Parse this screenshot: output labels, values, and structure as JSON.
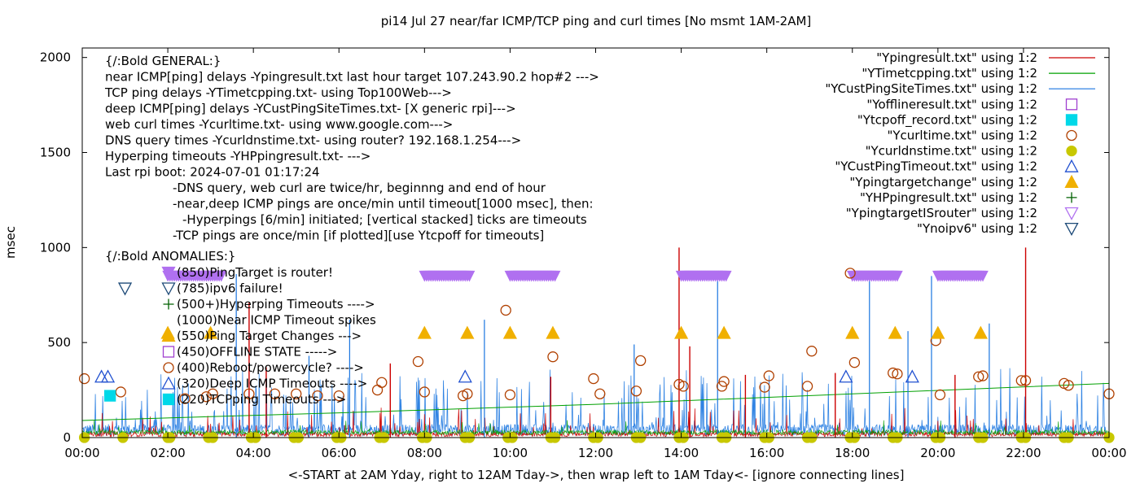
{
  "chart_data": {
    "type": "scatter",
    "title": "pi14 Jul 27  near/far ICMP/TCP ping and curl times [No msmt 1AM-2AM]",
    "xlabel": "<-START at 2AM Yday, right to 12AM Tday->, then wrap left to 1AM Tday<- [ignore connecting lines]",
    "ylabel": "msec",
    "xlim": [
      0,
      24
    ],
    "ylim": [
      0,
      2050
    ],
    "x_unit": "hours",
    "x_ticks": [
      0,
      2,
      4,
      6,
      8,
      10,
      12,
      14,
      16,
      18,
      20,
      22,
      24
    ],
    "x_tick_labels": [
      "00:00",
      "02:00",
      "04:00",
      "06:00",
      "08:00",
      "10:00",
      "12:00",
      "14:00",
      "16:00",
      "18:00",
      "20:00",
      "22:00",
      "00:00"
    ],
    "y_ticks": [
      0,
      500,
      1000,
      1500,
      2000
    ],
    "y_tick_labels": [
      "0",
      "500",
      "1000",
      "1500",
      "2000"
    ],
    "grid": false,
    "legend_position": "top-right",
    "annotations": [
      "{/:Bold GENERAL:}",
      "near ICMP[ping] delays -Ypingresult.txt last hour target 107.243.90.2 hop#2 --->",
      "TCP ping delays -YTimetcpping.txt- using Top100Web--->",
      "deep ICMP[ping] delays -YCustPingSiteTimes.txt- [X generic rpi]--->",
      "web curl times -Ycurltime.txt- using www.google.com--->",
      "DNS query times -Ycurldnstime.txt- using router? 192.168.1.254--->",
      "Hyperping timeouts -YHPpingresult.txt- --->",
      "Last rpi boot: 2024-07-01 01:17:24",
      "-DNS query, web curl are twice/hr, beginnng and end of hour",
      "-near,deep ICMP pings are once/min until timeout[1000 msec], then:",
      "-Hyperpings [6/min] initiated; [vertical stacked] ticks are timeouts",
      "-TCP pings are once/min [if plotted][use Ytcpoff for timeouts]",
      "{/:Bold ANOMALIES:}",
      "(850)PingTarget is router!",
      "(785)ipv6 failure!",
      "(500+)Hyperping Timeouts ---->",
      "(1000)Near ICMP Timeout spikes",
      "(550)Ping Target Changes --->",
      "(450)OFFLINE STATE ----->",
      "(400)Reboot/powercycle? ---->",
      "(320)Deep ICMP Timeouts ---->",
      "(220)TCPping Timeouts --->"
    ],
    "legend": [
      {
        "name": "\"Ypingresult.txt\" using 1:2",
        "kind": "line",
        "color": "#cc0000"
      },
      {
        "name": "\"YTimetcpping.txt\" using 1:2",
        "kind": "line",
        "color": "#00a000"
      },
      {
        "name": "\"YCustPingSiteTimes.txt\" using 1:2",
        "kind": "line",
        "color": "#1a75e0"
      },
      {
        "name": "\"Yofflineresult.txt\" using 1:2",
        "kind": "square-open",
        "color": "#a040d0"
      },
      {
        "name": "\"Ytcpoff_record.txt\" using 1:2",
        "kind": "square-filled",
        "color": "#00d8e8"
      },
      {
        "name": "\"Ycurltime.txt\" using 1:2",
        "kind": "circle-open",
        "color": "#b04000"
      },
      {
        "name": "\"Ycurldnstime.txt\" using 1:2",
        "kind": "circle-filled",
        "color": "#c8c800"
      },
      {
        "name": "\"YCustPingTimeout.txt\" using 1:2",
        "kind": "triangle-up-open",
        "color": "#2050d0"
      },
      {
        "name": "\"Ypingtargetchange\" using 1:2",
        "kind": "triangle-up-filled",
        "color": "#f0b000"
      },
      {
        "name": "\"YHPpingresult.txt\" using 1:2",
        "kind": "plus",
        "color": "#006000"
      },
      {
        "name": "\"YpingtargetISrouter\" using 1:2",
        "kind": "triangle-down-open",
        "color": "#b070f0"
      },
      {
        "name": "\"Ynoipv6\" using 1:2",
        "kind": "triangle-down-open",
        "color": "#1d4a78"
      }
    ],
    "series": [
      {
        "name": "\"Ycurltime.txt\" using 1:2",
        "points": [
          [
            0.05,
            310
          ],
          [
            0.9,
            240
          ],
          [
            2.4,
            205
          ],
          [
            2.9,
            215
          ],
          [
            3.05,
            230
          ],
          [
            3.9,
            230
          ],
          [
            4.5,
            230
          ],
          [
            5.0,
            230
          ],
          [
            5.5,
            220
          ],
          [
            6.0,
            220
          ],
          [
            6.9,
            250
          ],
          [
            7.0,
            290
          ],
          [
            7.85,
            400
          ],
          [
            8.0,
            240
          ],
          [
            8.9,
            220
          ],
          [
            9.0,
            230
          ],
          [
            9.9,
            670
          ],
          [
            10.0,
            225
          ],
          [
            11.0,
            425
          ],
          [
            11.95,
            310
          ],
          [
            12.1,
            230
          ],
          [
            12.95,
            245
          ],
          [
            13.05,
            405
          ],
          [
            13.95,
            280
          ],
          [
            14.05,
            270
          ],
          [
            14.95,
            270
          ],
          [
            15.0,
            295
          ],
          [
            15.95,
            265
          ],
          [
            16.05,
            325
          ],
          [
            16.95,
            270
          ],
          [
            17.05,
            455
          ],
          [
            17.95,
            865
          ],
          [
            18.05,
            395
          ],
          [
            18.95,
            340
          ],
          [
            19.05,
            335
          ],
          [
            19.95,
            510
          ],
          [
            20.05,
            225
          ],
          [
            20.95,
            320
          ],
          [
            21.05,
            325
          ],
          [
            21.95,
            300
          ],
          [
            22.05,
            300
          ],
          [
            22.95,
            285
          ],
          [
            23.05,
            275
          ],
          [
            24.0,
            230
          ]
        ]
      },
      {
        "name": "\"Ycurldnstime.txt\" using 1:2",
        "points": [
          [
            0.05,
            0
          ],
          [
            0.95,
            0
          ],
          [
            2.0,
            0
          ],
          [
            2.05,
            0
          ],
          [
            2.95,
            0
          ],
          [
            3.05,
            0
          ],
          [
            3.95,
            0
          ],
          [
            4.05,
            0
          ],
          [
            4.95,
            0
          ],
          [
            5.05,
            0
          ],
          [
            5.95,
            0
          ],
          [
            6.05,
            0
          ],
          [
            6.95,
            0
          ],
          [
            7.05,
            0
          ],
          [
            7.95,
            0
          ],
          [
            8.05,
            0
          ],
          [
            8.95,
            0
          ],
          [
            9.05,
            0
          ],
          [
            9.95,
            0
          ],
          [
            10.05,
            0
          ],
          [
            10.95,
            0
          ],
          [
            11.05,
            0
          ],
          [
            11.95,
            0
          ],
          [
            12.05,
            0
          ],
          [
            12.95,
            0
          ],
          [
            13.05,
            0
          ],
          [
            13.95,
            0
          ],
          [
            14.05,
            0
          ],
          [
            14.95,
            0
          ],
          [
            15.05,
            0
          ],
          [
            15.95,
            0
          ],
          [
            16.05,
            0
          ],
          [
            16.95,
            0
          ],
          [
            17.05,
            0
          ],
          [
            17.95,
            0
          ],
          [
            18.05,
            0
          ],
          [
            18.95,
            0
          ],
          [
            19.05,
            0
          ],
          [
            19.95,
            0
          ],
          [
            20.05,
            0
          ],
          [
            20.95,
            0
          ],
          [
            21.05,
            0
          ],
          [
            21.95,
            0
          ],
          [
            22.05,
            0
          ],
          [
            22.95,
            0
          ],
          [
            23.05,
            0
          ],
          [
            24.0,
            0
          ]
        ]
      },
      {
        "name": "\"YCustPingTimeout.txt\" using 1:2",
        "points": [
          [
            0.45,
            320
          ],
          [
            0.6,
            320
          ],
          [
            8.95,
            320
          ],
          [
            17.85,
            320
          ],
          [
            19.4,
            320
          ]
        ]
      },
      {
        "name": "\"Ypingtargetchange\" using 1:2",
        "points": [
          [
            2.0,
            550
          ],
          [
            3.0,
            550
          ],
          [
            8.0,
            550
          ],
          [
            9.0,
            550
          ],
          [
            10.0,
            550
          ],
          [
            11.0,
            550
          ],
          [
            14.0,
            550
          ],
          [
            15.0,
            550
          ],
          [
            18.0,
            550
          ],
          [
            19.0,
            550
          ],
          [
            20.0,
            550
          ],
          [
            21.0,
            550
          ]
        ]
      },
      {
        "name": "\"Ytcpoff_record.txt\" using 1:2",
        "points": [
          [
            0.65,
            220
          ]
        ]
      },
      {
        "name": "\"Ynoipv6\" using 1:2",
        "points": [
          [
            1.0,
            785
          ]
        ]
      },
      {
        "name": "\"YpingtargetISrouter\" using 1:2",
        "ranges": [
          [
            2.0,
            3.25
          ],
          [
            8.0,
            9.1
          ],
          [
            10.0,
            11.1
          ],
          [
            14.0,
            15.1
          ],
          [
            18.0,
            19.1
          ],
          [
            20.0,
            21.1
          ]
        ],
        "value": 850
      },
      {
        "name": "\"YTimetcpping.txt\" using 1:2",
        "trend": [
          [
            0,
            90
          ],
          [
            6,
            130
          ],
          [
            12,
            175
          ],
          [
            18,
            230
          ],
          [
            24,
            285
          ]
        ]
      },
      {
        "name": "\"Ypingresult.txt\" using 1:2",
        "spikes": [
          [
            13.95,
            1000
          ],
          [
            22.05,
            1000
          ],
          [
            3.9,
            710
          ],
          [
            4.3,
            370
          ],
          [
            7.2,
            390
          ],
          [
            14.2,
            480
          ],
          [
            10.95,
            320
          ],
          [
            15.5,
            330
          ],
          [
            17.6,
            340
          ],
          [
            20.4,
            330
          ]
        ]
      },
      {
        "name": "\"YCustPingSiteTimes.txt\" using 1:2",
        "spikes": [
          [
            3.6,
            860
          ],
          [
            6.25,
            620
          ],
          [
            9.4,
            620
          ],
          [
            14.85,
            870
          ],
          [
            18.4,
            830
          ],
          [
            19.85,
            850
          ],
          [
            19.3,
            560
          ],
          [
            21.2,
            600
          ],
          [
            12.9,
            490
          ],
          [
            5.3,
            430
          ]
        ]
      }
    ]
  }
}
